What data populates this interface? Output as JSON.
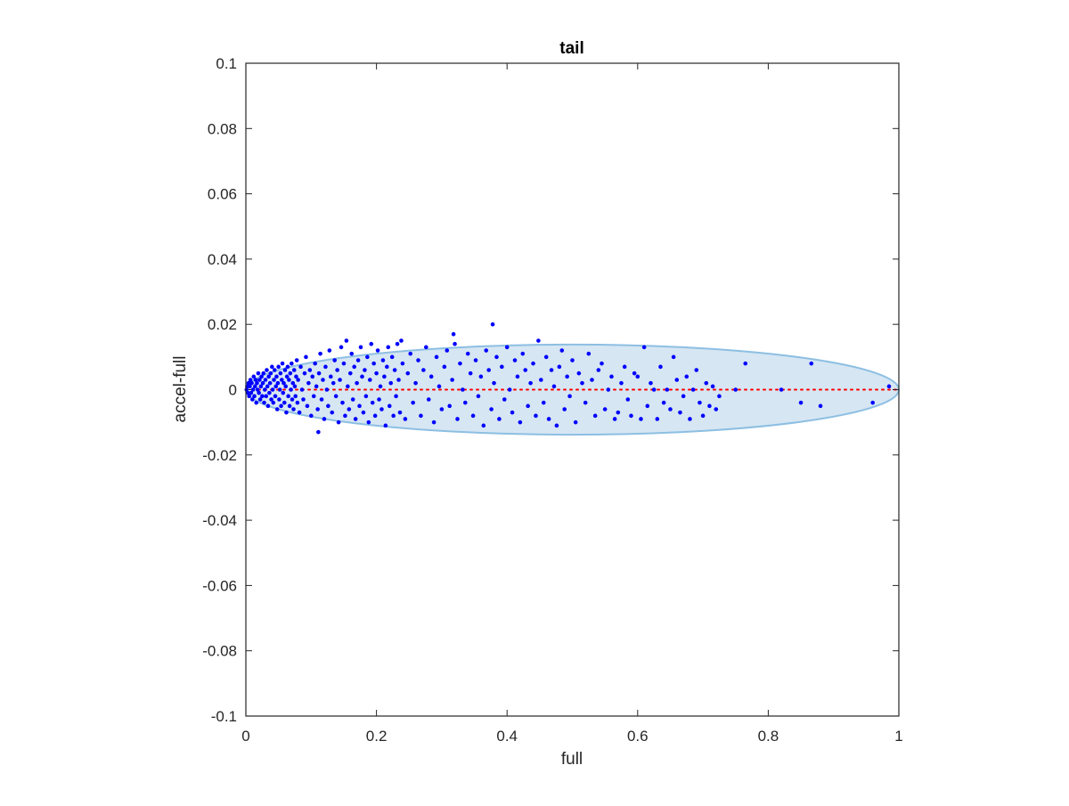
{
  "chart_data": {
    "type": "scatter",
    "title": "tail",
    "xlabel": "full",
    "ylabel": "accel-full",
    "xlim": [
      0,
      1
    ],
    "ylim": [
      -0.1,
      0.1
    ],
    "xticks": [
      0,
      0.2,
      0.4,
      0.6,
      0.8,
      1
    ],
    "xtick_labels": [
      "0",
      "0.2",
      "0.4",
      "0.6",
      "0.8",
      "1"
    ],
    "yticks": [
      -0.1,
      -0.08,
      -0.06,
      -0.04,
      -0.02,
      0,
      0.02,
      0.04,
      0.06,
      0.08,
      0.1
    ],
    "ytick_labels": [
      "-0.1",
      "-0.08",
      "-0.06",
      "-0.04",
      "-0.02",
      "0",
      "0.02",
      "0.04",
      "0.06",
      "0.08",
      "0.1"
    ],
    "grid": false,
    "marker_color": "#0000ff",
    "reference_line": {
      "y": 0,
      "x": [
        0,
        1
      ],
      "style": "dotted",
      "color": "#ff0000"
    },
    "ellipse": {
      "center": [
        0.5,
        0
      ],
      "x_radius": 0.5,
      "y_radius": 0.0138,
      "fill": "#d6e6f3",
      "edge": "#8dbfe2"
    },
    "points": [
      [
        0.001,
        0.0
      ],
      [
        0.002,
        0.001
      ],
      [
        0.003,
        -0.001
      ],
      [
        0.004,
        0.002
      ],
      [
        0.005,
        -0.002
      ],
      [
        0.006,
        0.001
      ],
      [
        0.007,
        0.003
      ],
      [
        0.008,
        -0.001
      ],
      [
        0.009,
        0.002
      ],
      [
        0.01,
        -0.003
      ],
      [
        0.011,
        0.0
      ],
      [
        0.012,
        0.004
      ],
      [
        0.013,
        -0.002
      ],
      [
        0.014,
        0.001
      ],
      [
        0.015,
        0.003
      ],
      [
        0.016,
        -0.004
      ],
      [
        0.017,
        0.002
      ],
      [
        0.018,
        0.0
      ],
      [
        0.019,
        0.005
      ],
      [
        0.02,
        -0.001
      ],
      [
        0.021,
        0.003
      ],
      [
        0.022,
        -0.003
      ],
      [
        0.023,
        0.001
      ],
      [
        0.024,
        0.004
      ],
      [
        0.025,
        -0.002
      ],
      [
        0.026,
        0.002
      ],
      [
        0.027,
        0.005
      ],
      [
        0.028,
        -0.004
      ],
      [
        0.029,
        0.0
      ],
      [
        0.03,
        0.003
      ],
      [
        0.031,
        -0.002
      ],
      [
        0.032,
        0.006
      ],
      [
        0.033,
        0.001
      ],
      [
        0.034,
        -0.005
      ],
      [
        0.035,
        0.004
      ],
      [
        0.036,
        -0.001
      ],
      [
        0.037,
        0.002
      ],
      [
        0.038,
        0.005
      ],
      [
        0.039,
        -0.003
      ],
      [
        0.04,
        0.007
      ],
      [
        0.041,
        0.0
      ],
      [
        0.042,
        -0.004
      ],
      [
        0.043,
        0.003
      ],
      [
        0.044,
        0.006
      ],
      [
        0.045,
        -0.002
      ],
      [
        0.046,
        0.001
      ],
      [
        0.047,
        0.004
      ],
      [
        0.048,
        -0.006
      ],
      [
        0.049,
        0.002
      ],
      [
        0.05,
        0.007
      ],
      [
        0.051,
        -0.003
      ],
      [
        0.052,
        0.0
      ],
      [
        0.053,
        0.005
      ],
      [
        0.054,
        -0.005
      ],
      [
        0.055,
        0.003
      ],
      [
        0.056,
        0.008
      ],
      [
        0.057,
        -0.001
      ],
      [
        0.058,
        0.002
      ],
      [
        0.059,
        -0.004
      ],
      [
        0.06,
        0.006
      ],
      [
        0.061,
        0.001
      ],
      [
        0.062,
        -0.007
      ],
      [
        0.063,
        0.004
      ],
      [
        0.064,
        0.007
      ],
      [
        0.065,
        -0.002
      ],
      [
        0.066,
        0.003
      ],
      [
        0.067,
        -0.005
      ],
      [
        0.068,
        0.005
      ],
      [
        0.069,
        0.0
      ],
      [
        0.07,
        0.008
      ],
      [
        0.071,
        -0.003
      ],
      [
        0.072,
        0.002
      ],
      [
        0.073,
        -0.006
      ],
      [
        0.074,
        0.006
      ],
      [
        0.075,
        0.001
      ],
      [
        0.076,
        -0.002
      ],
      [
        0.077,
        0.004
      ],
      [
        0.078,
        0.009
      ],
      [
        0.079,
        -0.004
      ],
      [
        0.08,
        0.003
      ],
      [
        0.082,
        -0.007
      ],
      [
        0.084,
        0.007
      ],
      [
        0.086,
        0.0
      ],
      [
        0.088,
        -0.003
      ],
      [
        0.09,
        0.005
      ],
      [
        0.092,
        0.01
      ],
      [
        0.094,
        -0.005
      ],
      [
        0.096,
        0.002
      ],
      [
        0.098,
        0.006
      ],
      [
        0.1,
        -0.008
      ],
      [
        0.102,
        0.004
      ],
      [
        0.104,
        -0.002
      ],
      [
        0.106,
        0.008
      ],
      [
        0.108,
        0.001
      ],
      [
        0.11,
        -0.006
      ],
      [
        0.111,
        -0.013
      ],
      [
        0.112,
        0.005
      ],
      [
        0.114,
        0.011
      ],
      [
        0.116,
        -0.003
      ],
      [
        0.118,
        0.003
      ],
      [
        0.12,
        -0.009
      ],
      [
        0.122,
        0.007
      ],
      [
        0.124,
        0.0
      ],
      [
        0.126,
        -0.005
      ],
      [
        0.128,
        0.012
      ],
      [
        0.13,
        0.004
      ],
      [
        0.132,
        -0.007
      ],
      [
        0.134,
        0.002
      ],
      [
        0.136,
        0.009
      ],
      [
        0.138,
        -0.002
      ],
      [
        0.14,
        0.006
      ],
      [
        0.142,
        -0.01
      ],
      [
        0.144,
        0.003
      ],
      [
        0.146,
        0.013
      ],
      [
        0.148,
        -0.004
      ],
      [
        0.15,
        0.008
      ],
      [
        0.152,
        -0.008
      ],
      [
        0.154,
        0.015
      ],
      [
        0.156,
        0.001
      ],
      [
        0.158,
        -0.006
      ],
      [
        0.16,
        0.005
      ],
      [
        0.162,
        0.011
      ],
      [
        0.164,
        -0.003
      ],
      [
        0.166,
        0.007
      ],
      [
        0.168,
        -0.009
      ],
      [
        0.17,
        0.002
      ],
      [
        0.172,
        0.009
      ],
      [
        0.174,
        -0.005
      ],
      [
        0.176,
        0.013
      ],
      [
        0.178,
        0.004
      ],
      [
        0.18,
        -0.007
      ],
      [
        0.182,
        0.006
      ],
      [
        0.184,
        -0.002
      ],
      [
        0.186,
        0.01
      ],
      [
        0.188,
        -0.01
      ],
      [
        0.19,
        0.003
      ],
      [
        0.192,
        0.014
      ],
      [
        0.194,
        -0.004
      ],
      [
        0.196,
        0.008
      ],
      [
        0.198,
        -0.008
      ],
      [
        0.2,
        0.005
      ],
      [
        0.202,
        0.012
      ],
      [
        0.204,
        -0.003
      ],
      [
        0.206,
        0.001
      ],
      [
        0.208,
        -0.006
      ],
      [
        0.21,
        0.009
      ],
      [
        0.212,
        0.004
      ],
      [
        0.214,
        -0.011
      ],
      [
        0.216,
        0.007
      ],
      [
        0.218,
        0.013
      ],
      [
        0.22,
        -0.005
      ],
      [
        0.222,
        0.002
      ],
      [
        0.224,
        0.01
      ],
      [
        0.226,
        -0.008
      ],
      [
        0.228,
        0.006
      ],
      [
        0.23,
        -0.002
      ],
      [
        0.232,
        0.014
      ],
      [
        0.234,
        0.003
      ],
      [
        0.236,
        -0.007
      ],
      [
        0.238,
        0.015
      ],
      [
        0.24,
        0.008
      ],
      [
        0.244,
        -0.009
      ],
      [
        0.248,
        0.005
      ],
      [
        0.252,
        0.011
      ],
      [
        0.256,
        -0.004
      ],
      [
        0.26,
        0.002
      ],
      [
        0.264,
        0.009
      ],
      [
        0.268,
        -0.008
      ],
      [
        0.272,
        0.006
      ],
      [
        0.276,
        0.013
      ],
      [
        0.28,
        -0.003
      ],
      [
        0.284,
        0.004
      ],
      [
        0.288,
        -0.01
      ],
      [
        0.292,
        0.01
      ],
      [
        0.296,
        0.001
      ],
      [
        0.3,
        -0.006
      ],
      [
        0.304,
        0.007
      ],
      [
        0.308,
        0.012
      ],
      [
        0.312,
        -0.005
      ],
      [
        0.316,
        0.003
      ],
      [
        0.318,
        0.017
      ],
      [
        0.32,
        0.014
      ],
      [
        0.324,
        -0.009
      ],
      [
        0.328,
        0.008
      ],
      [
        0.332,
        0.0
      ],
      [
        0.336,
        -0.004
      ],
      [
        0.34,
        0.011
      ],
      [
        0.344,
        0.005
      ],
      [
        0.348,
        -0.008
      ],
      [
        0.352,
        0.009
      ],
      [
        0.356,
        -0.002
      ],
      [
        0.36,
        0.004
      ],
      [
        0.364,
        -0.011
      ],
      [
        0.368,
        0.012
      ],
      [
        0.372,
        0.006
      ],
      [
        0.376,
        -0.006
      ],
      [
        0.378,
        0.02
      ],
      [
        0.38,
        0.002
      ],
      [
        0.384,
        0.01
      ],
      [
        0.388,
        -0.009
      ],
      [
        0.392,
        0.007
      ],
      [
        0.396,
        -0.003
      ],
      [
        0.4,
        0.013
      ],
      [
        0.404,
        0.0
      ],
      [
        0.408,
        -0.007
      ],
      [
        0.412,
        0.009
      ],
      [
        0.416,
        0.004
      ],
      [
        0.42,
        -0.01
      ],
      [
        0.424,
        0.011
      ],
      [
        0.428,
        0.006
      ],
      [
        0.432,
        -0.005
      ],
      [
        0.436,
        0.002
      ],
      [
        0.44,
        0.008
      ],
      [
        0.444,
        -0.008
      ],
      [
        0.448,
        0.015
      ],
      [
        0.452,
        0.003
      ],
      [
        0.456,
        -0.004
      ],
      [
        0.46,
        0.01
      ],
      [
        0.464,
        -0.009
      ],
      [
        0.468,
        0.006
      ],
      [
        0.472,
        0.001
      ],
      [
        0.476,
        -0.011
      ],
      [
        0.48,
        0.007
      ],
      [
        0.484,
        0.012
      ],
      [
        0.488,
        -0.006
      ],
      [
        0.492,
        0.004
      ],
      [
        0.496,
        -0.002
      ],
      [
        0.5,
        0.009
      ],
      [
        0.505,
        -0.01
      ],
      [
        0.51,
        0.005
      ],
      [
        0.515,
        0.002
      ],
      [
        0.52,
        -0.004
      ],
      [
        0.525,
        0.011
      ],
      [
        0.53,
        0.003
      ],
      [
        0.535,
        -0.008
      ],
      [
        0.54,
        0.006
      ],
      [
        0.545,
        0.008
      ],
      [
        0.55,
        -0.006
      ],
      [
        0.555,
        0.0
      ],
      [
        0.56,
        0.004
      ],
      [
        0.565,
        -0.009
      ],
      [
        0.57,
        -0.007
      ],
      [
        0.575,
        0.002
      ],
      [
        0.58,
        0.007
      ],
      [
        0.585,
        -0.003
      ],
      [
        0.59,
        -0.008
      ],
      [
        0.595,
        0.005
      ],
      [
        0.6,
        0.004
      ],
      [
        0.605,
        -0.009
      ],
      [
        0.61,
        0.013
      ],
      [
        0.615,
        -0.005
      ],
      [
        0.62,
        0.002
      ],
      [
        0.625,
        0.0
      ],
      [
        0.63,
        -0.009
      ],
      [
        0.635,
        0.007
      ],
      [
        0.64,
        -0.004
      ],
      [
        0.645,
        0.0
      ],
      [
        0.65,
        -0.006
      ],
      [
        0.655,
        0.01
      ],
      [
        0.66,
        0.003
      ],
      [
        0.665,
        -0.007
      ],
      [
        0.67,
        -0.002
      ],
      [
        0.675,
        0.004
      ],
      [
        0.68,
        -0.009
      ],
      [
        0.685,
        0.0
      ],
      [
        0.69,
        0.006
      ],
      [
        0.695,
        -0.004
      ],
      [
        0.7,
        -0.008
      ],
      [
        0.705,
        0.002
      ],
      [
        0.71,
        -0.005
      ],
      [
        0.715,
        0.001
      ],
      [
        0.72,
        -0.006
      ],
      [
        0.725,
        -0.002
      ],
      [
        0.75,
        0.0
      ],
      [
        0.765,
        0.008
      ],
      [
        0.82,
        0.0
      ],
      [
        0.85,
        -0.004
      ],
      [
        0.866,
        0.008
      ],
      [
        0.88,
        -0.005
      ],
      [
        0.96,
        -0.004
      ],
      [
        0.985,
        0.001
      ]
    ]
  }
}
